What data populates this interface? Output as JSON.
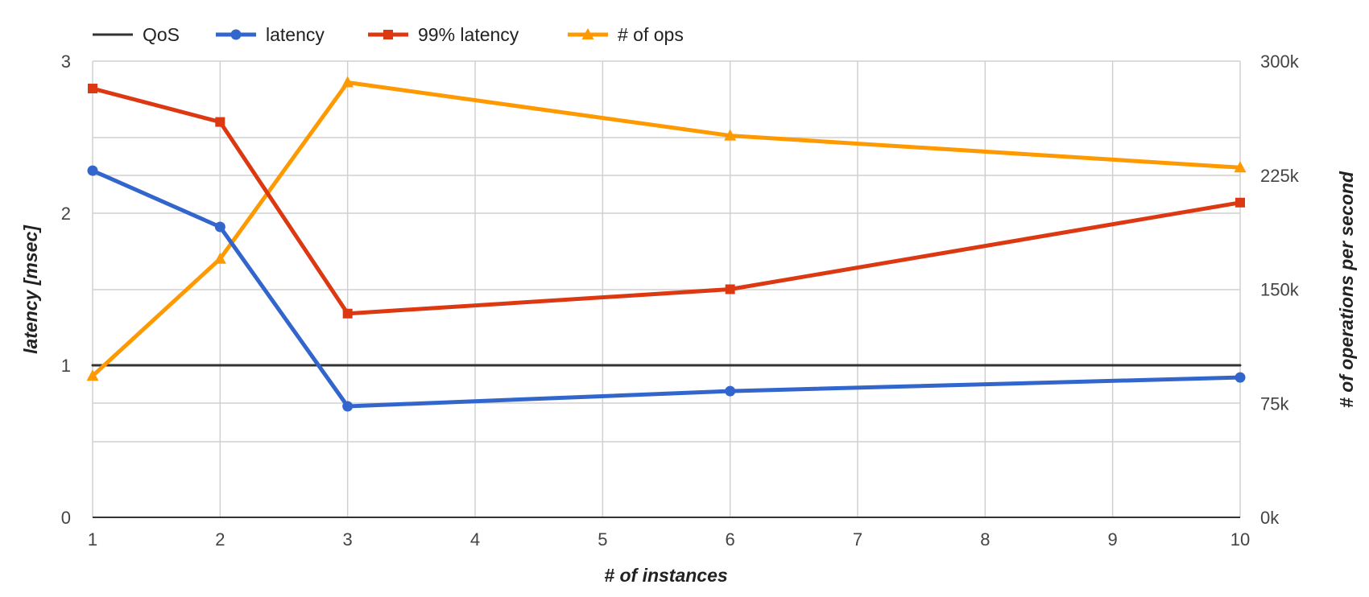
{
  "chart_data": {
    "type": "line",
    "x": [
      1,
      2,
      3,
      6,
      10
    ],
    "x_ticks": [
      "1",
      "2",
      "3",
      "4",
      "5",
      "6",
      "7",
      "8",
      "9",
      "10"
    ],
    "xlabel": "# of instances",
    "ylabel_left": "latency [msec]",
    "ylabel_right": "# of operations per second",
    "ylim_left": [
      0,
      3
    ],
    "ylim_right": [
      0,
      300000
    ],
    "yticks_left": [
      "0",
      "1",
      "2",
      "3"
    ],
    "yticks_right": [
      "0k",
      "75k",
      "150k",
      "225k",
      "300k"
    ],
    "grid": true,
    "legend_position": "top-left",
    "series": [
      {
        "name": "QoS",
        "axis": "left",
        "marker": "none",
        "color": "#333333",
        "values": [
          1,
          1,
          1,
          1,
          1
        ]
      },
      {
        "name": "latency",
        "axis": "left",
        "marker": "circle",
        "color": "#3366cc",
        "values": [
          2.28,
          1.91,
          0.73,
          0.83,
          0.92
        ]
      },
      {
        "name": "99% latency",
        "axis": "left",
        "marker": "square",
        "color": "#dc3912",
        "values": [
          2.82,
          2.6,
          1.34,
          1.5,
          2.07
        ]
      },
      {
        "name": "# of ops",
        "axis": "right",
        "marker": "triangle",
        "color": "#ff9900",
        "values": [
          93000,
          170000,
          286000,
          251000,
          230000
        ]
      }
    ]
  }
}
